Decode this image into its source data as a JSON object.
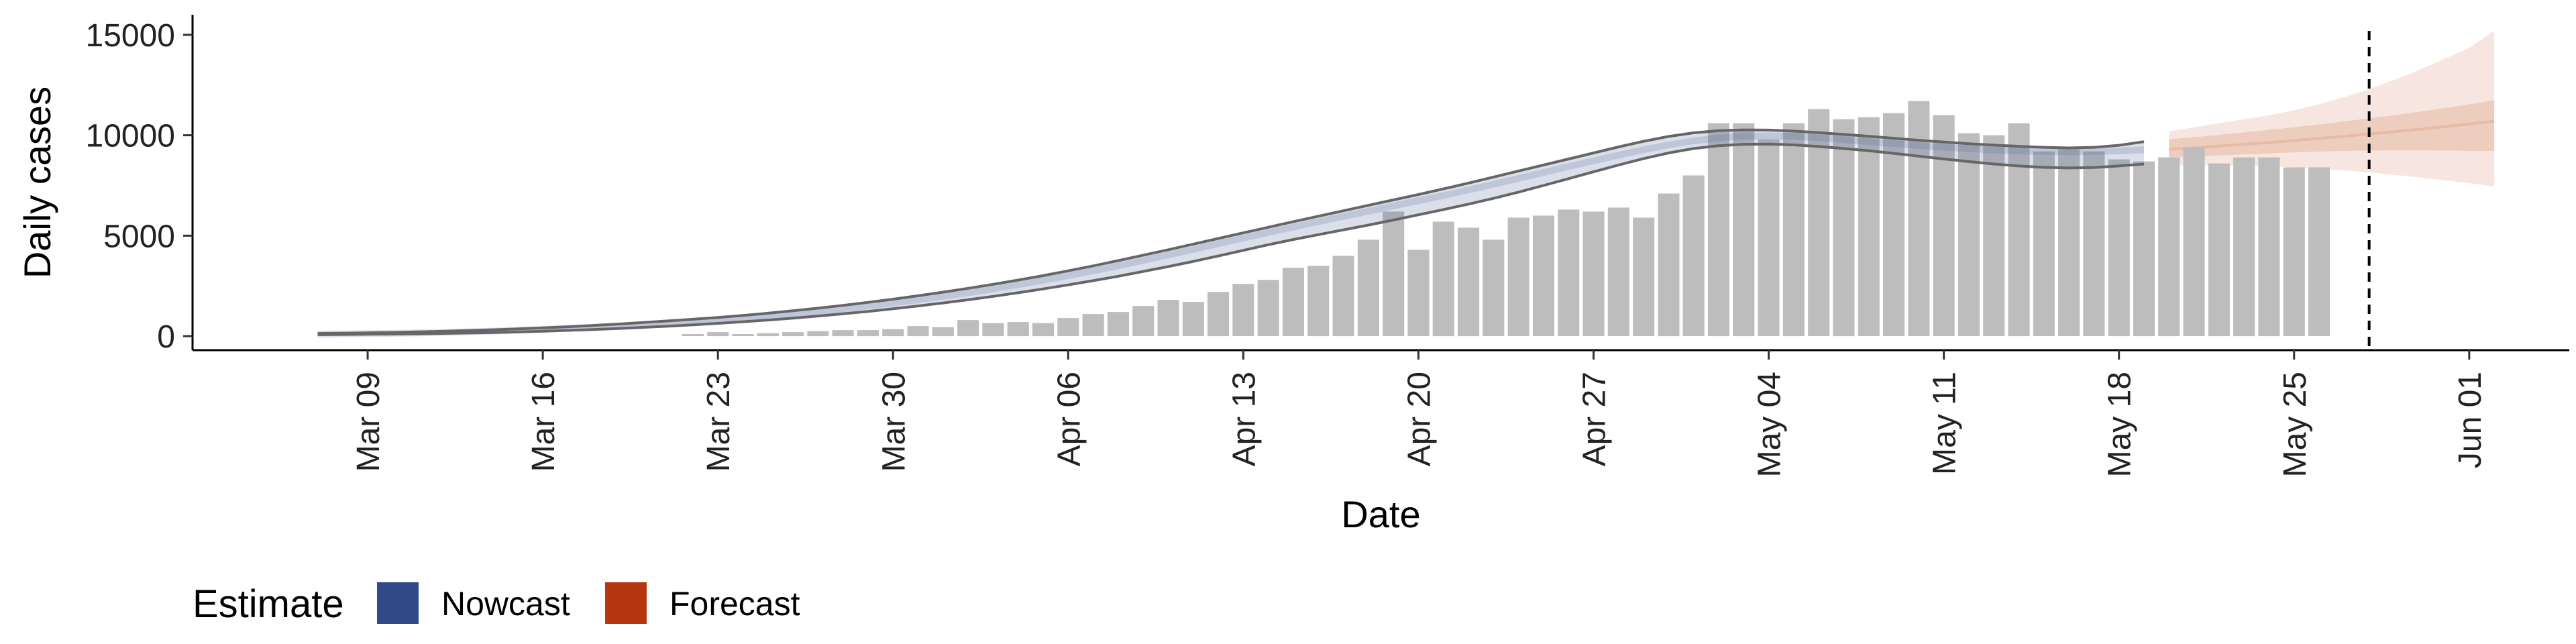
{
  "chart_data": {
    "type": "bar",
    "xlabel": "Date",
    "ylabel": "Daily cases",
    "ylim": [
      -700,
      16000
    ],
    "yticks": [
      0,
      5000,
      10000,
      15000
    ],
    "ytick_labels": [
      "0",
      "5000",
      "10000",
      "15000"
    ],
    "xticks": [
      "2020-03-09",
      "2020-03-16",
      "2020-03-23",
      "2020-03-30",
      "2020-04-06",
      "2020-04-13",
      "2020-04-20",
      "2020-04-27",
      "2020-05-04",
      "2020-05-11",
      "2020-05-18",
      "2020-05-25",
      "2020-06-01"
    ],
    "xtick_labels": [
      "Mar 09",
      "Mar 16",
      "Mar 23",
      "Mar 30",
      "Apr 06",
      "Apr 13",
      "Apr 20",
      "Apr 27",
      "May 04",
      "May 11",
      "May 18",
      "May 25",
      "Jun 01"
    ],
    "xlim": [
      "2020-03-02",
      "2020-06-05"
    ],
    "grid": false,
    "report_date": "2020-05-28",
    "bars": {
      "start_date": "2020-03-22",
      "color": "#bdbdbd",
      "values": [
        100,
        200,
        100,
        150,
        200,
        250,
        300,
        300,
        350,
        500,
        450,
        800,
        650,
        700,
        650,
        900,
        1100,
        1200,
        1500,
        1800,
        1700,
        2200,
        2600,
        2800,
        3400,
        3500,
        4000,
        4800,
        6200,
        4300,
        5700,
        5400,
        4800,
        5900,
        6000,
        6300,
        6200,
        6400,
        5900,
        7100,
        8000,
        10600,
        10600,
        9800,
        10600,
        11300,
        10800,
        10900,
        11100,
        11700,
        11000,
        10100,
        10000,
        10600,
        9200,
        9300,
        9200,
        8800,
        8700,
        8900,
        9400,
        8600,
        8900,
        8900,
        8400,
        8400
      ]
    },
    "nowcast": {
      "start_date": "2020-03-07",
      "color": "#5a6f9e",
      "median": [
        100,
        110,
        125,
        140,
        160,
        185,
        215,
        250,
        290,
        335,
        385,
        440,
        500,
        565,
        640,
        720,
        805,
        900,
        1000,
        1110,
        1230,
        1360,
        1500,
        1650,
        1810,
        1980,
        2160,
        2350,
        2560,
        2780,
        3010,
        3250,
        3500,
        3770,
        4040,
        4320,
        4600,
        4880,
        5160,
        5430,
        5700,
        5960,
        6220,
        6480,
        6740,
        7000,
        7280,
        7560,
        7850,
        8140,
        8440,
        8730,
        9010,
        9280,
        9520,
        9720,
        9870,
        9950,
        9970,
        9940,
        9870,
        9780,
        9680,
        9580,
        9480,
        9400,
        9330,
        9270,
        9220,
        9190,
        9180,
        9190,
        9220,
        9280
      ],
      "upper90": [
        130,
        145,
        165,
        185,
        210,
        240,
        275,
        315,
        360,
        410,
        465,
        530,
        600,
        675,
        755,
        840,
        930,
        1030,
        1140,
        1260,
        1390,
        1530,
        1680,
        1840,
        2010,
        2190,
        2380,
        2580,
        2790,
        3010,
        3250,
        3500,
        3760,
        4030,
        4300,
        4580,
        4860,
        5140,
        5420,
        5700,
        5970,
        6240,
        6510,
        6780,
        7050,
        7330,
        7620,
        7920,
        8220,
        8520,
        8820,
        9120,
        9420,
        9700,
        9940,
        10120,
        10230,
        10270,
        10260,
        10210,
        10130,
        10040,
        9950,
        9850,
        9750,
        9660,
        9580,
        9510,
        9450,
        9400,
        9370,
        9400,
        9500,
        9680
      ],
      "lower90": [
        70,
        80,
        90,
        100,
        115,
        135,
        155,
        180,
        210,
        245,
        285,
        330,
        380,
        435,
        495,
        560,
        635,
        715,
        800,
        895,
        1000,
        1110,
        1230,
        1360,
        1500,
        1650,
        1810,
        1980,
        2160,
        2350,
        2550,
        2760,
        2980,
        3220,
        3460,
        3720,
        3990,
        4270,
        4550,
        4810,
        5050,
        5290,
        5530,
        5780,
        6040,
        6300,
        6570,
        6860,
        7170,
        7500,
        7840,
        8180,
        8520,
        8840,
        9120,
        9340,
        9480,
        9550,
        9560,
        9520,
        9440,
        9340,
        9230,
        9100,
        8960,
        8820,
        8690,
        8570,
        8470,
        8400,
        8370,
        8390,
        8470,
        8570
      ]
    },
    "forecast": {
      "start_date": "2020-05-20",
      "color": "#e6b8a2",
      "median": [
        9300,
        9380,
        9460,
        9550,
        9640,
        9740,
        9840,
        9950,
        10060,
        10180,
        10300,
        10430,
        10560,
        10700
      ],
      "upper50": [
        9800,
        9900,
        10020,
        10140,
        10270,
        10400,
        10540,
        10690,
        10840,
        11000,
        11170,
        11350,
        11540,
        11740
      ],
      "lower50": [
        8900,
        8950,
        9000,
        9050,
        9100,
        9150,
        9190,
        9220,
        9240,
        9250,
        9250,
        9240,
        9230,
        9220
      ],
      "upper90": [
        10200,
        10400,
        10600,
        10800,
        11000,
        11250,
        11550,
        11900,
        12300,
        12750,
        13250,
        13800,
        14350,
        15200
      ],
      "lower90": [
        8500,
        8500,
        8500,
        8480,
        8450,
        8400,
        8330,
        8250,
        8150,
        8030,
        7900,
        7760,
        7620,
        7450
      ]
    },
    "legend": {
      "title": "Estimate",
      "position": "bottom-left",
      "items": [
        {
          "label": "Nowcast",
          "color": "#2f4a87"
        },
        {
          "label": "Forecast",
          "color": "#b43710"
        }
      ]
    }
  }
}
